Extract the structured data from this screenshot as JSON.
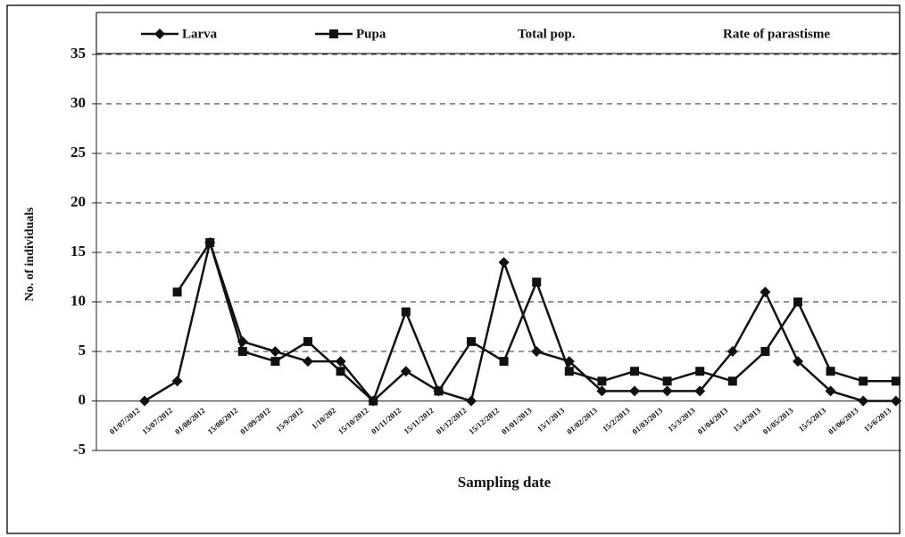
{
  "chart_data": {
    "type": "line",
    "xlabel": "Sampling date",
    "ylabel": "No. of individuals",
    "categories": [
      "01/07/2012",
      "15/07/2012",
      "01/08/2012",
      "15/08/2012",
      "01/09/2012",
      "15/9/2012",
      "1/10/202",
      "15/10/2012",
      "01/11/2012",
      "15/11/2012",
      "01/12/2012",
      "15/12/2012",
      "01/01/2013",
      "15/1/2013",
      "01/02/2013",
      "15/2/2013",
      "01/03/2013",
      "15/3/2013",
      "01/04/2013",
      "15/4/2013",
      "01/05/2013",
      "15/5/2013",
      "01/06/2013",
      "15/6/2013"
    ],
    "series": [
      {
        "name": "Larva",
        "color": "#111111",
        "marker": "diamond",
        "values": [
          0,
          2,
          16,
          6,
          5,
          4,
          4,
          0,
          3,
          1,
          0,
          14,
          5,
          4,
          1,
          1,
          1,
          1,
          5,
          11,
          4,
          1,
          0,
          0
        ]
      },
      {
        "name": "Pupa",
        "color": "#111111",
        "marker": "square",
        "values": [
          null,
          11,
          16,
          5,
          4,
          6,
          3,
          0,
          9,
          1,
          6,
          4,
          12,
          3,
          2,
          3,
          2,
          3,
          2,
          5,
          10,
          3,
          2,
          2
        ]
      }
    ],
    "legend_only": [
      "Total pop.",
      "Rate of parastisme"
    ],
    "ylim": [
      -5,
      35
    ],
    "yticks": [
      -5,
      0,
      5,
      10,
      15,
      20,
      25,
      30,
      35
    ],
    "grid": true
  }
}
